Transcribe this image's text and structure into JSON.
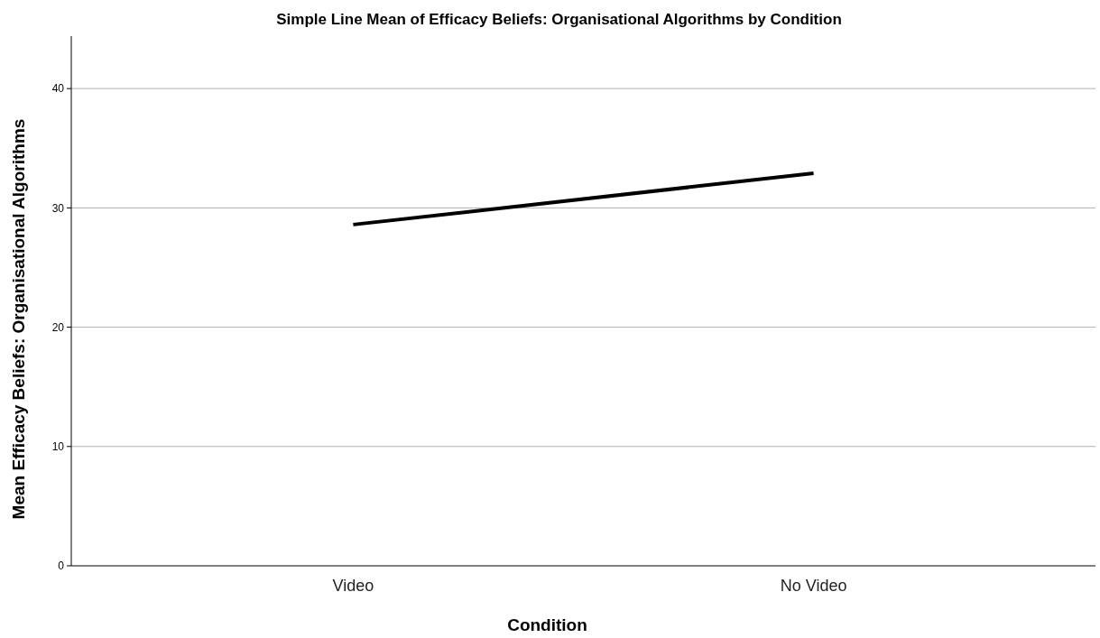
{
  "chart_data": {
    "type": "line",
    "title": "Simple Line Mean of Efficacy Beliefs: Organisational Algorithms by Condition",
    "xlabel": "Condition",
    "ylabel": "Mean Efficacy Beliefs: Organisational Algorithms",
    "categories": [
      "Video",
      "No Video"
    ],
    "series": [
      {
        "color": "#000000",
        "values": [
          28.6,
          32.9
        ]
      }
    ],
    "ylim": [
      0,
      44.4
    ],
    "yticks": [
      0,
      10,
      20,
      30,
      40
    ],
    "grid": "y",
    "marker": "none",
    "line_style": "solid"
  }
}
